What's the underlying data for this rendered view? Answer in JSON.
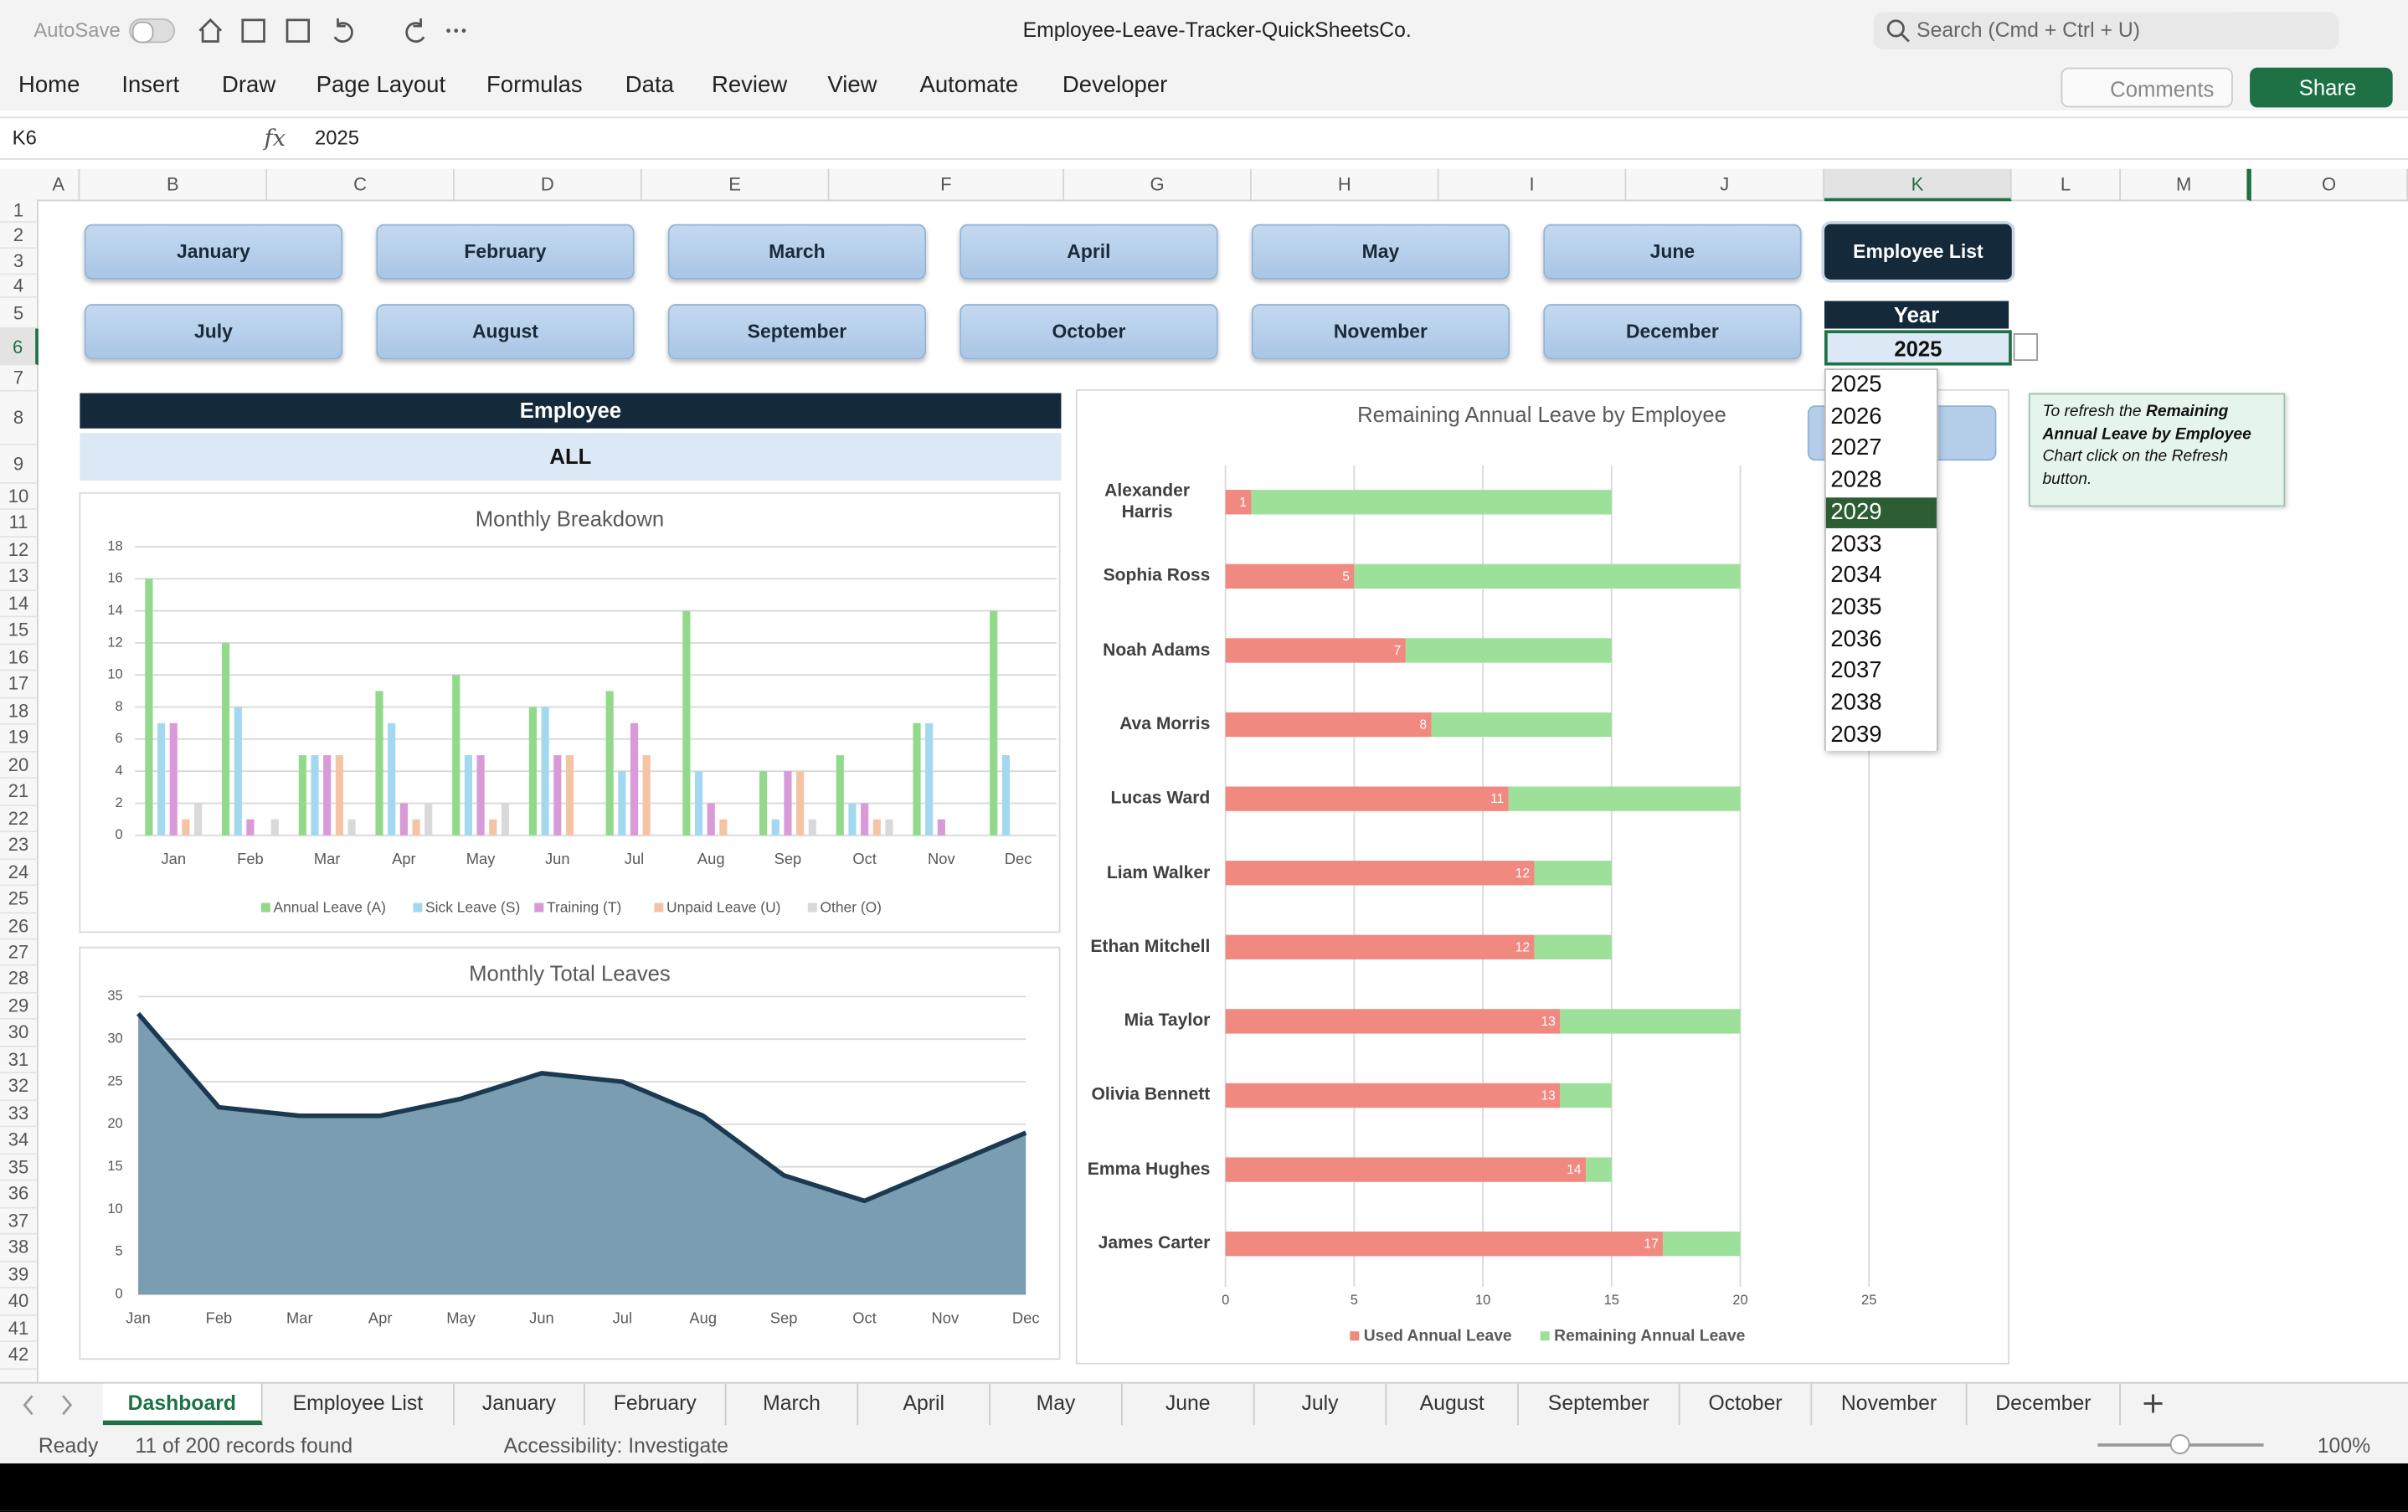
{
  "window": {
    "autosave": "AutoSave",
    "file_name": "Employee-Leave-Tracker-QuickSheetsCo.",
    "search": "Search (Cmd + Ctrl + U)"
  },
  "ribbon": {
    "tabs": [
      "Home",
      "Insert",
      "Draw",
      "Page Layout",
      "Formulas",
      "Data",
      "Review",
      "View",
      "Automate",
      "Developer"
    ],
    "comments": "Comments",
    "share": "Share"
  },
  "formula_bar": {
    "cell": "K6",
    "fx": "fx",
    "value": "2025"
  },
  "grid": {
    "columns": [
      "A",
      "B",
      "C",
      "D",
      "E",
      "F",
      "G",
      "H",
      "I",
      "J",
      "K",
      "L",
      "M",
      "O"
    ],
    "rows": [
      1,
      2,
      3,
      4,
      5,
      6,
      7,
      8,
      9,
      10,
      11,
      12,
      13,
      14,
      15,
      16,
      17,
      18,
      19,
      20,
      21,
      22,
      23,
      24,
      25,
      26,
      27,
      28,
      29,
      30,
      31,
      32,
      33,
      34,
      35,
      36,
      37,
      38,
      39,
      40,
      41,
      42
    ]
  },
  "dashboard": {
    "month_buttons": [
      "January",
      "February",
      "March",
      "April",
      "May",
      "June",
      "July",
      "August",
      "September",
      "October",
      "November",
      "December"
    ],
    "employee_list_button": "Employee List",
    "year_label": "Year",
    "year_value": "2025",
    "year_options": [
      "2025",
      "2026",
      "2027",
      "2028",
      "2029",
      "2033",
      "2034",
      "2035",
      "2036",
      "2037",
      "2038",
      "2039"
    ],
    "year_selected": "2029",
    "employee_label": "Employee",
    "employee_value": "ALL",
    "note": {
      "text_1": "To refresh the ",
      "bold": "Remaining Annual Leave by Employee",
      "text_2": " Chart click on the Refresh button."
    }
  },
  "chart_data": [
    {
      "type": "bar",
      "title": "Monthly Breakdown",
      "categories": [
        "Jan",
        "Feb",
        "Mar",
        "Apr",
        "May",
        "Jun",
        "Jul",
        "Aug",
        "Sep",
        "Oct",
        "Nov",
        "Dec"
      ],
      "series": [
        {
          "name": "Annual Leave (A)",
          "color": "#92d98c",
          "values": [
            16,
            12,
            5,
            9,
            10,
            8,
            9,
            14,
            4,
            5,
            7,
            14
          ]
        },
        {
          "name": "Sick Leave (S)",
          "color": "#a3d9f0",
          "values": [
            7,
            8,
            5,
            7,
            5,
            8,
            4,
            4,
            1,
            2,
            7,
            5
          ]
        },
        {
          "name": "Training (T)",
          "color": "#d99ad9",
          "values": [
            7,
            1,
            5,
            2,
            5,
            5,
            7,
            2,
            4,
            2,
            1,
            0
          ]
        },
        {
          "name": "Unpaid Leave (U)",
          "color": "#f4c4a4",
          "values": [
            1,
            0,
            5,
            1,
            1,
            5,
            5,
            1,
            4,
            1,
            0,
            0
          ]
        },
        {
          "name": "Other (O)",
          "color": "#d9d9d9",
          "values": [
            2,
            1,
            1,
            2,
            2,
            0,
            0,
            0,
            1,
            1,
            0,
            0
          ]
        }
      ],
      "ylim": [
        0,
        18
      ],
      "yticks": [
        0,
        2,
        4,
        6,
        8,
        10,
        12,
        14,
        16,
        18
      ],
      "grid": true,
      "legend": "bottom"
    },
    {
      "type": "area",
      "title": "Monthly Total Leaves",
      "categories": [
        "Jan",
        "Feb",
        "Mar",
        "Apr",
        "May",
        "Jun",
        "Jul",
        "Aug",
        "Sep",
        "Oct",
        "Nov",
        "Dec"
      ],
      "values": [
        33,
        22,
        21,
        21,
        23,
        26,
        25,
        21,
        14,
        11,
        15,
        19
      ],
      "color": "#7a9db2",
      "line_color": "#1b3a52",
      "ylim": [
        0,
        35
      ],
      "yticks": [
        0,
        5,
        10,
        15,
        20,
        25,
        30,
        35
      ],
      "grid": true
    },
    {
      "type": "stacked_barh",
      "title": "Remaining Annual Leave by Employee",
      "categories": [
        "Alexander Harris",
        "Sophia Ross",
        "Noah Adams",
        "Ava Morris",
        "Lucas Ward",
        "Liam Walker",
        "Ethan Mitchell",
        "Mia Taylor",
        "Olivia Bennett",
        "Emma Hughes",
        "James Carter"
      ],
      "series": [
        {
          "name": "Used Annual Leave",
          "color": "#f08a80",
          "values": [
            1,
            5,
            7,
            8,
            11,
            12,
            12,
            13,
            13,
            14,
            17
          ]
        },
        {
          "name": "Remaining Annual Leave",
          "color": "#9de09a",
          "values": [
            14,
            15,
            8,
            7,
            9,
            3,
            3,
            7,
            2,
            1,
            3
          ]
        }
      ],
      "xlim": [
        0,
        25
      ],
      "xticks": [
        0,
        5,
        10,
        15,
        20,
        25
      ],
      "grid": true,
      "legend": "bottom"
    }
  ],
  "sheet_tabs": [
    "Dashboard",
    "Employee List",
    "January",
    "February",
    "March",
    "April",
    "May",
    "June",
    "July",
    "August",
    "September",
    "October",
    "November",
    "December"
  ],
  "status_bar": {
    "ready": "Ready",
    "records": "11 of 200 records found",
    "accessibility": "Accessibility: Investigate",
    "zoom": "100%"
  }
}
